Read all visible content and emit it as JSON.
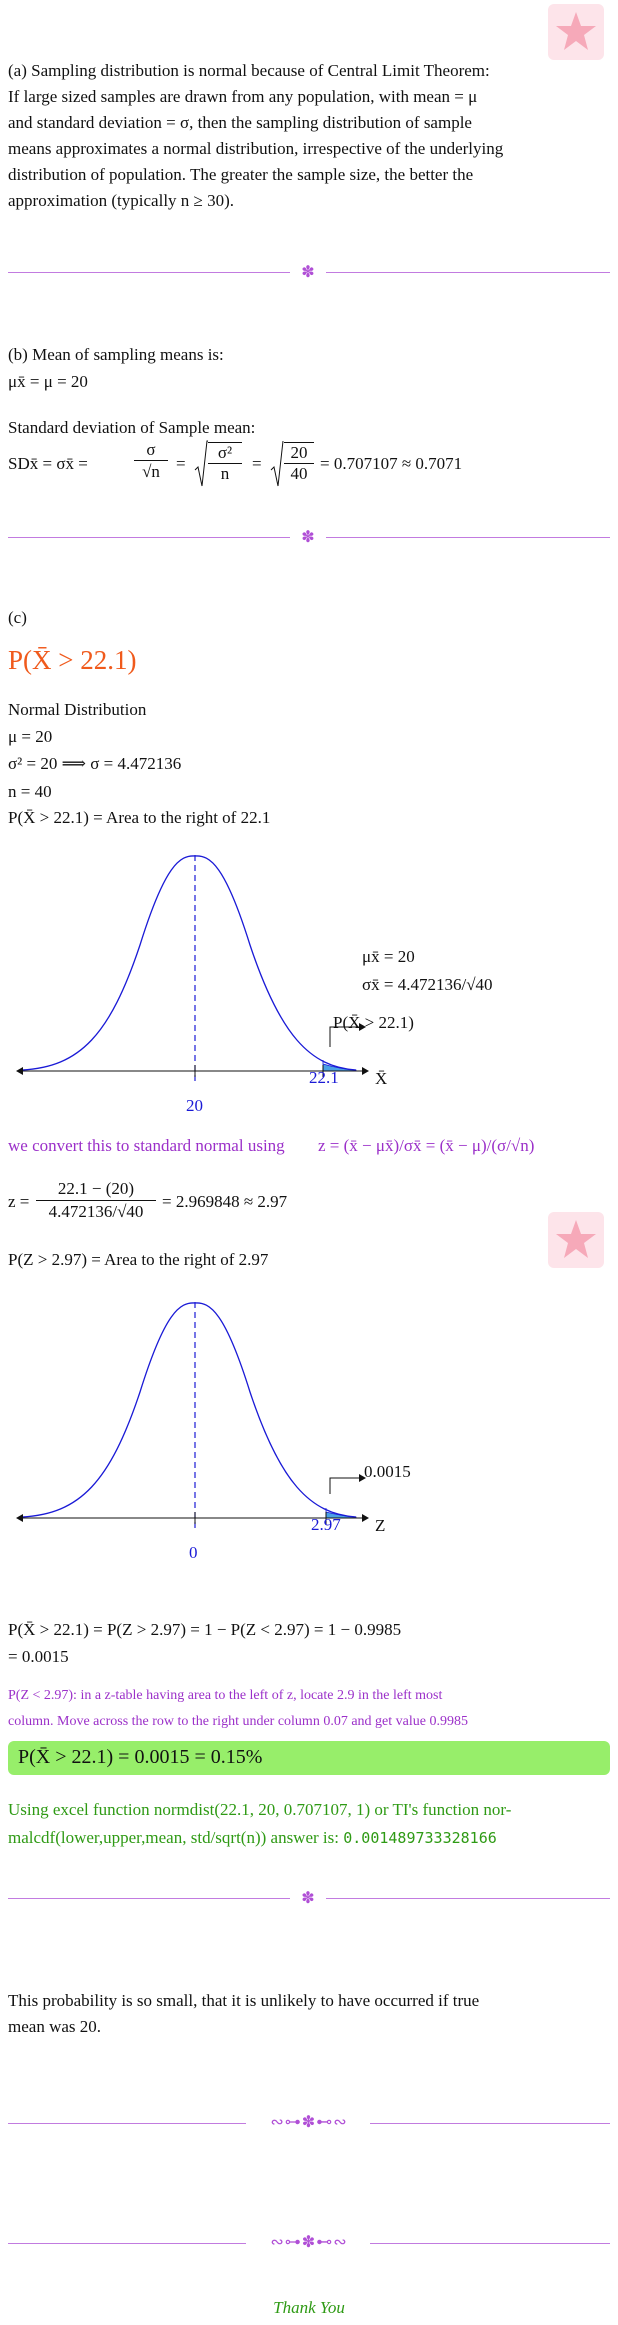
{
  "partA": {
    "lines": [
      "(a) Sampling distribution is normal because of Central Limit Theorem:",
      "If large sized samples are drawn from any population, with mean = μ",
      "and standard deviation = σ, then the sampling distribution of sample",
      "means approximates a normal distribution, irrespective of the underlying",
      "distribution of population.  The greater the sample size, the better the",
      "approximation (typically n ≥ 30)."
    ]
  },
  "partB": {
    "heading": "(b) Mean of sampling means is:",
    "mean_eq": "μx̄ = μ = 20",
    "sd_heading": "Standard deviation of Sample mean:",
    "sd_lhs": "SDx̄ = σx̄ =",
    "sd_frac_num": "σ",
    "sd_frac_den": "√n",
    "sd_eq1": "=",
    "sd_sqrt1_num": "σ²",
    "sd_sqrt1_den": "n",
    "sd_eq2": "=",
    "sd_sqrt2_num": "20",
    "sd_sqrt2_den": "40",
    "sd_result": "= 0.707107 ≈ 0.7071"
  },
  "partC": {
    "label": "(c)",
    "title": "P(X̄ > 22.1)",
    "dist_name": "Normal Distribution",
    "mu": "μ = 20",
    "sigma": "σ² = 20 ⟹ σ = 4.472136",
    "n": "n = 40",
    "area_text": "P(X̄ > 22.1) = Area to the right of 22.1",
    "graph1": {
      "mu_label": "μx̄ = 20",
      "sigma_label": "σx̄ = 4.472136/√40",
      "region_label": "P(X̄ > 22.1)",
      "mean_tick": "20",
      "value_tick": "22.1",
      "axis_label": "X̄"
    },
    "convert_text": "we convert this to standard normal using",
    "z_formula": "z = (x̄ − μx̄)/σx̄ = (x̄ − μ)/(σ/√n)",
    "z_calc_lhs": "z =",
    "z_calc_num": "22.1 − (20)",
    "z_calc_den": "4.472136/√40",
    "z_calc_result": "= 2.969848 ≈ 2.97",
    "z_area_text": "P(Z > 2.97) = Area to the right of 2.97",
    "graph2": {
      "region_label": "0.0015",
      "mean_tick": "0",
      "value_tick": "2.97",
      "axis_label": "Z"
    },
    "prob_line1": "P(X̄ > 22.1) = P(Z > 2.97) = 1 − P(Z < 2.97) = 1 − 0.9985",
    "prob_line2": "= 0.0015",
    "ztable_line1": "P(Z < 2.97):  in a z-table having area to the left of z, locate 2.9 in the left most",
    "ztable_line2": "column. Move across the row to the right under column 0.07 and get value 0.9985",
    "answer": "P(X̄ > 22.1) = 0.0015 = 0.15%",
    "excel_line1": "Using excel function normdist(22.1, 20, 0.707107, 1) or TI's function nor-",
    "excel_line2_text": "malcdf(lower,upper,mean, std/sqrt(n)) answer is:",
    "excel_line2_value": "0.001489733328166"
  },
  "conclusion": "This probability is so small, that it is unlikely to have occurred if true mean was 20.",
  "conclusion_line1": "This probability is so small, that it is unlikely to have occurred if true",
  "conclusion_line2": "mean was 20.",
  "thanks": "Thank You",
  "colors": {
    "accent_purple": "#9b30c9",
    "title_orange": "#f05a1c",
    "answer_green_bg": "#97ee6a",
    "text_green": "#2e9a14",
    "curve_blue": "#1a1ad6"
  },
  "icons": [
    "ornament-star-icon",
    "watermark-icon"
  ]
}
